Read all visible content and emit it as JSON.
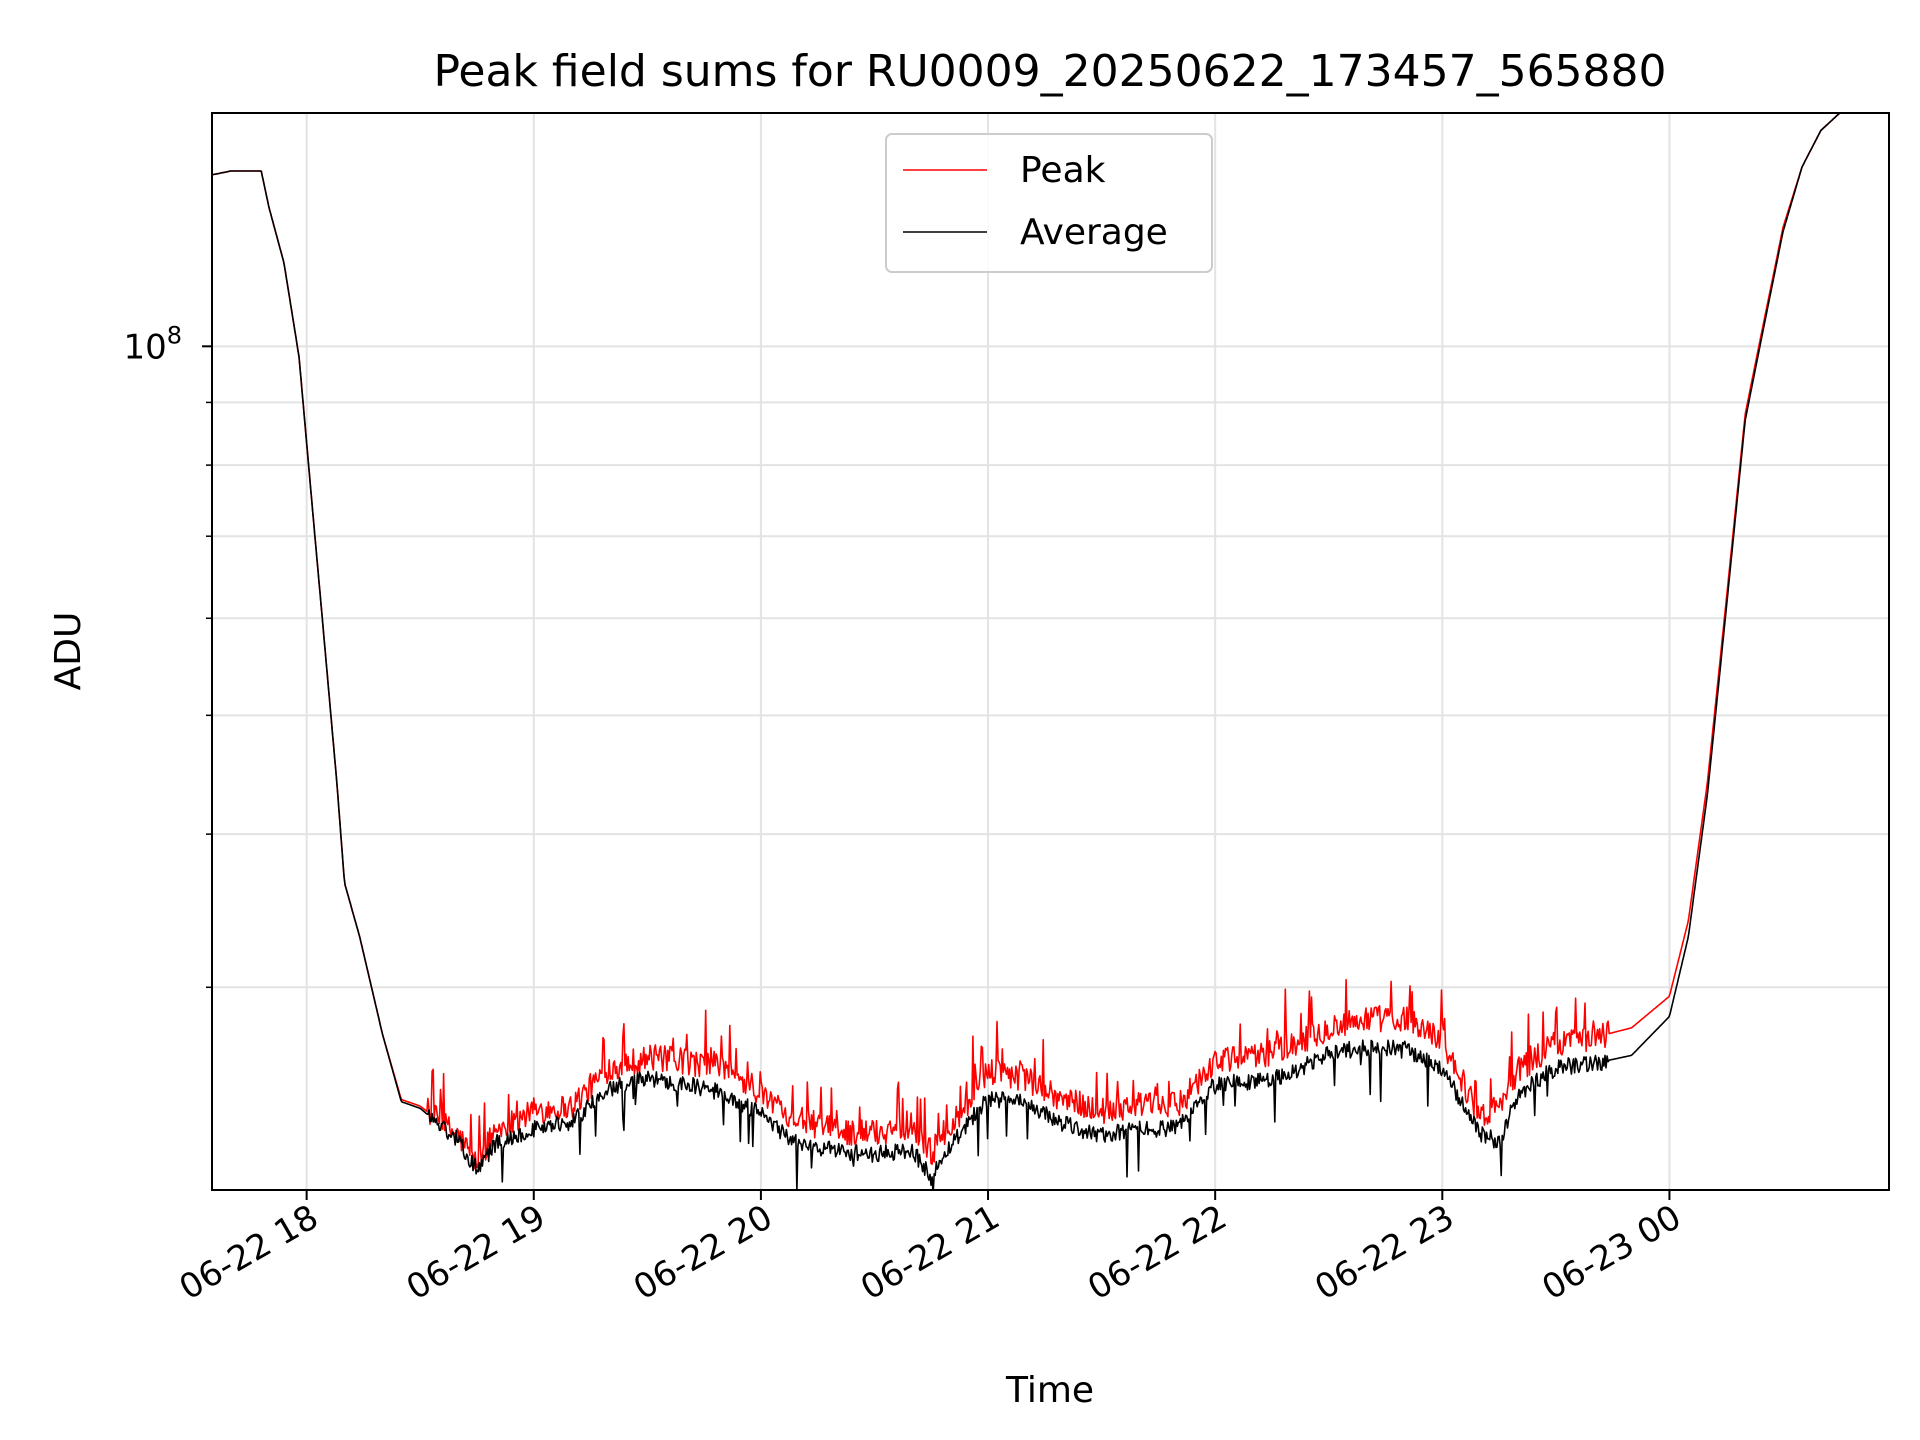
{
  "chart_data": {
    "type": "line",
    "title": "Peak field sums for RU0009_20250622_173457_565880",
    "xlabel": "Time",
    "ylabel": "ADU",
    "y_scale": "log",
    "ylim": [
      20500000,
      155000000
    ],
    "xlim": [
      "2025-06-22 17:35",
      "2025-06-23 00:58"
    ],
    "x_ticks": [
      {
        "t": "2025-06-22 18:00",
        "label": "06-22 18"
      },
      {
        "t": "2025-06-22 19:00",
        "label": "06-22 19"
      },
      {
        "t": "2025-06-22 20:00",
        "label": "06-22 20"
      },
      {
        "t": "2025-06-22 21:00",
        "label": "06-22 21"
      },
      {
        "t": "2025-06-22 22:00",
        "label": "06-22 22"
      },
      {
        "t": "2025-06-22 23:00",
        "label": "06-22 23"
      },
      {
        "t": "2025-06-23 00:00",
        "label": "06-23 00"
      }
    ],
    "y_major_ticks": [
      {
        "value": 100000000,
        "base": "10",
        "exponent": "8"
      }
    ],
    "y_minor_ticks": [
      30000000,
      40000000,
      50000000,
      60000000,
      70000000,
      80000000,
      90000000
    ],
    "grid": true,
    "legend_position": "upper center",
    "series": [
      {
        "name": "Peak",
        "color": "#ff0000",
        "x": [
          "2025-06-22 17:35",
          "2025-06-22 17:40",
          "2025-06-22 17:48",
          "2025-06-22 17:50",
          "2025-06-22 17:54",
          "2025-06-22 17:58",
          "2025-06-22 18:02",
          "2025-06-22 18:05",
          "2025-06-22 18:08",
          "2025-06-22 18:10",
          "2025-06-22 18:14",
          "2025-06-22 18:20",
          "2025-06-22 18:25",
          "2025-06-22 18:30",
          "2025-06-22 18:40",
          "2025-06-22 18:45",
          "2025-06-22 18:50",
          "2025-06-22 18:55",
          "2025-06-22 19:00",
          "2025-06-22 19:10",
          "2025-06-22 19:20",
          "2025-06-22 19:30",
          "2025-06-22 19:40",
          "2025-06-22 19:50",
          "2025-06-22 20:00",
          "2025-06-22 20:10",
          "2025-06-22 20:20",
          "2025-06-22 20:30",
          "2025-06-22 20:40",
          "2025-06-22 20:45",
          "2025-06-22 20:50",
          "2025-06-22 21:00",
          "2025-06-22 21:10",
          "2025-06-22 21:20",
          "2025-06-22 21:30",
          "2025-06-22 21:40",
          "2025-06-22 21:50",
          "2025-06-22 22:00",
          "2025-06-22 22:10",
          "2025-06-22 22:20",
          "2025-06-22 22:30",
          "2025-06-22 22:40",
          "2025-06-22 22:50",
          "2025-06-22 23:00",
          "2025-06-22 23:10",
          "2025-06-22 23:15",
          "2025-06-22 23:20",
          "2025-06-22 23:30",
          "2025-06-22 23:40",
          "2025-06-22 23:50",
          "2025-06-23 00:00",
          "2025-06-23 00:05",
          "2025-06-23 00:10",
          "2025-06-23 00:15",
          "2025-06-23 00:20",
          "2025-06-23 00:25",
          "2025-06-23 00:30",
          "2025-06-23 00:35",
          "2025-06-23 00:40",
          "2025-06-23 00:45",
          "2025-06-23 00:50",
          "2025-06-23 00:55",
          "2025-06-23 00:58"
        ],
        "y": [
          138000000,
          139000000,
          139000000,
          130000000,
          117000000,
          98000000,
          71000000,
          56000000,
          44000000,
          36500000,
          33000000,
          27500000,
          24300000,
          24000000,
          22700000,
          21600000,
          23000000,
          23300000,
          23800000,
          24000000,
          25800000,
          26300000,
          26100000,
          25800000,
          24500000,
          23400000,
          22900000,
          22800000,
          23200000,
          22000000,
          23000000,
          25600000,
          25300000,
          24300000,
          23800000,
          24100000,
          24000000,
          26100000,
          26300000,
          26900000,
          27800000,
          28300000,
          28300000,
          27200000,
          23500000,
          24000000,
          25600000,
          27000000,
          27300000,
          27800000,
          29500000,
          34000000,
          44000000,
          62000000,
          88000000,
          105000000,
          125000000,
          140000000,
          150000000,
          155000000,
          155000000,
          155000000,
          155000000
        ]
      },
      {
        "name": "Average",
        "color": "#000000",
        "x": [
          "2025-06-22 17:35",
          "2025-06-22 17:40",
          "2025-06-22 17:48",
          "2025-06-22 17:50",
          "2025-06-22 17:54",
          "2025-06-22 17:58",
          "2025-06-22 18:02",
          "2025-06-22 18:05",
          "2025-06-22 18:08",
          "2025-06-22 18:10",
          "2025-06-22 18:14",
          "2025-06-22 18:20",
          "2025-06-22 18:25",
          "2025-06-22 18:30",
          "2025-06-22 18:40",
          "2025-06-22 18:45",
          "2025-06-22 18:50",
          "2025-06-22 18:55",
          "2025-06-22 19:00",
          "2025-06-22 19:10",
          "2025-06-22 19:20",
          "2025-06-22 19:30",
          "2025-06-22 19:40",
          "2025-06-22 19:50",
          "2025-06-22 20:00",
          "2025-06-22 20:10",
          "2025-06-22 20:20",
          "2025-06-22 20:30",
          "2025-06-22 20:40",
          "2025-06-22 20:45",
          "2025-06-22 20:50",
          "2025-06-22 21:00",
          "2025-06-22 21:10",
          "2025-06-22 21:20",
          "2025-06-22 21:30",
          "2025-06-22 21:40",
          "2025-06-22 21:50",
          "2025-06-22 22:00",
          "2025-06-22 22:10",
          "2025-06-22 22:20",
          "2025-06-22 22:30",
          "2025-06-22 22:40",
          "2025-06-22 22:50",
          "2025-06-22 23:00",
          "2025-06-22 23:10",
          "2025-06-22 23:15",
          "2025-06-22 23:20",
          "2025-06-22 23:30",
          "2025-06-22 23:40",
          "2025-06-22 23:50",
          "2025-06-23 00:00",
          "2025-06-23 00:05",
          "2025-06-23 00:10",
          "2025-06-23 00:15",
          "2025-06-23 00:20",
          "2025-06-23 00:25",
          "2025-06-23 00:30",
          "2025-06-23 00:35",
          "2025-06-23 00:40",
          "2025-06-23 00:45",
          "2025-06-23 00:50",
          "2025-06-23 00:55",
          "2025-06-23 00:58"
        ],
        "y": [
          138000000,
          139000000,
          139000000,
          130000000,
          117000000,
          98000000,
          71000000,
          56000000,
          44000000,
          36500000,
          33000000,
          27500000,
          24200000,
          23900000,
          22500000,
          21300000,
          22400000,
          22700000,
          23000000,
          23300000,
          24800000,
          25300000,
          25000000,
          24600000,
          23600000,
          22300000,
          22100000,
          21900000,
          22100000,
          21000000,
          22300000,
          24400000,
          24100000,
          23200000,
          22700000,
          23000000,
          23000000,
          25100000,
          25100000,
          25500000,
          26500000,
          26800000,
          26700000,
          25700000,
          22800000,
          22400000,
          24500000,
          25800000,
          26000000,
          26400000,
          28400000,
          33000000,
          43000000,
          61000000,
          87000000,
          104000000,
          124000000,
          140000000,
          150000000,
          155000000,
          155000000,
          155000000,
          155000000
        ]
      }
    ]
  }
}
